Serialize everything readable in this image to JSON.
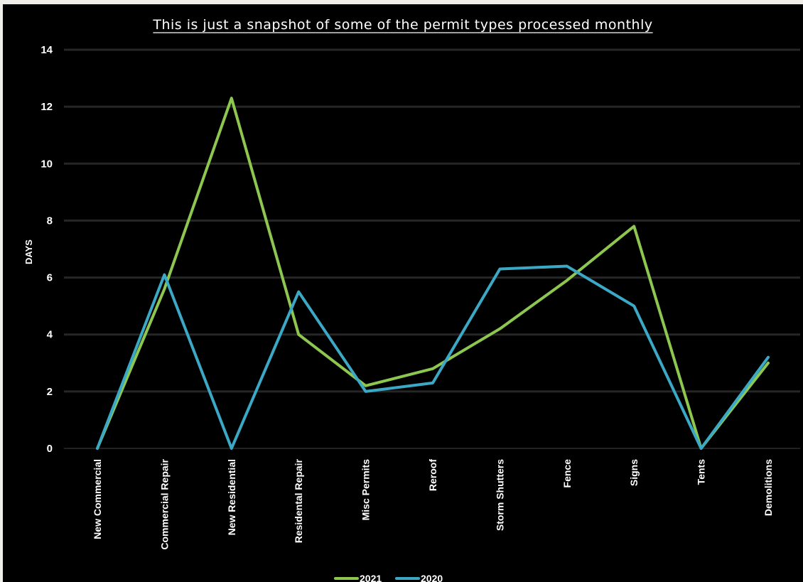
{
  "chart_data": {
    "type": "line",
    "title": "This is just a snapshot of some of the permit types processed monthly",
    "xlabel": "",
    "ylabel": "DAYS",
    "ylim": [
      0,
      14
    ],
    "yticks": [
      0,
      2,
      4,
      6,
      8,
      10,
      12,
      14
    ],
    "grid": true,
    "legend_position": "bottom",
    "categories": [
      "New Commercial",
      "Commercial Repair",
      "New Residential",
      "Residental Repair",
      "Misc Permits",
      "Reroof",
      "Storm Shutters",
      "Fence",
      "Signs",
      "Tents",
      "Demolitions"
    ],
    "series": [
      {
        "name": "2021",
        "color": "#8dc750",
        "values": [
          0,
          5.6,
          12.3,
          4.0,
          2.2,
          2.8,
          4.2,
          5.9,
          7.8,
          0,
          3.0
        ]
      },
      {
        "name": "2020",
        "color": "#3ba9c6",
        "values": [
          0,
          6.1,
          0,
          5.5,
          2.0,
          2.3,
          6.3,
          6.4,
          5.0,
          0,
          3.2
        ]
      }
    ]
  }
}
